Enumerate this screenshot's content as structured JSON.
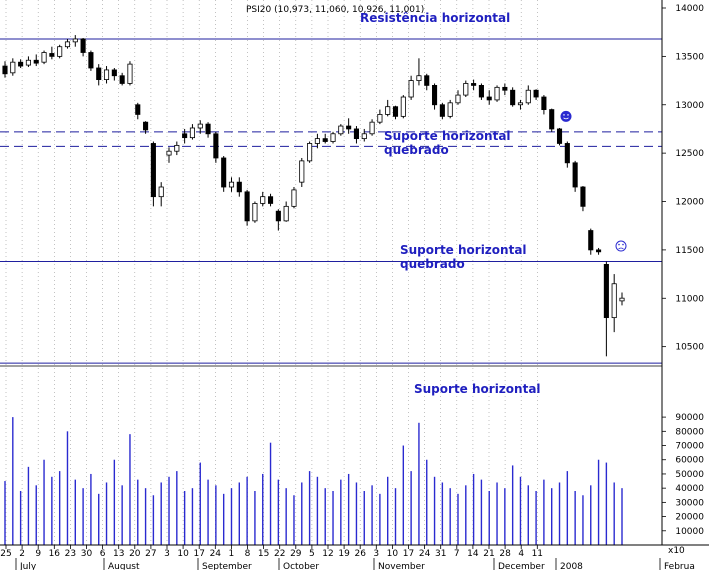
{
  "chart_data": [
    {
      "type": "candlestick",
      "title": "PSI20 (10,973, 11,060, 10,926, 11,001)",
      "price_range": [
        10300,
        14000
      ],
      "y_ticks": [
        10500,
        11000,
        11500,
        12000,
        12500,
        13000,
        13500,
        14000
      ],
      "grid": "vertical dotted",
      "horizontal_levels": [
        {
          "name": "resistance",
          "value": 13680,
          "style": "solid",
          "label": "Resistência horizontal"
        },
        {
          "name": "broken-support-1",
          "value": 12720,
          "style": "dashed",
          "label": ""
        },
        {
          "name": "broken-support-2",
          "value": 12570,
          "style": "dashed",
          "label": "Suporte horizontal\nquebrado"
        },
        {
          "name": "broken-support-3",
          "value": 11380,
          "style": "solid",
          "label": "Suporte horizontal\nquebrado"
        },
        {
          "name": "support",
          "value": 10330,
          "style": "solid",
          "label": "Suporte horizontal"
        }
      ],
      "x_tick_labels": [
        "25",
        "2",
        "9",
        "16",
        "23",
        "30",
        "6",
        "13",
        "20",
        "27",
        "3",
        "10",
        "17",
        "24",
        "1",
        "8",
        "15",
        "22",
        "29",
        "5",
        "12",
        "19",
        "26",
        "3",
        "10",
        "17",
        "24",
        "31",
        "7",
        "14",
        "21",
        "28",
        "4",
        "11"
      ],
      "month_labels": [
        "July",
        "August",
        "September",
        "October",
        "November",
        "December",
        "2008",
        "Februa"
      ],
      "ohlc": [
        [
          13400,
          13450,
          13280,
          13320
        ],
        [
          13330,
          13480,
          13300,
          13440
        ],
        [
          13440,
          13470,
          13380,
          13400
        ],
        [
          13410,
          13500,
          13390,
          13460
        ],
        [
          13460,
          13520,
          13400,
          13430
        ],
        [
          13440,
          13560,
          13420,
          13540
        ],
        [
          13530,
          13600,
          13470,
          13500
        ],
        [
          13500,
          13620,
          13480,
          13600
        ],
        [
          13600,
          13680,
          13580,
          13650
        ],
        [
          13650,
          13720,
          13600,
          13680
        ],
        [
          13680,
          13690,
          13500,
          13540
        ],
        [
          13540,
          13560,
          13350,
          13380
        ],
        [
          13380,
          13420,
          13200,
          13260
        ],
        [
          13260,
          13400,
          13220,
          13360
        ],
        [
          13360,
          13380,
          13250,
          13300
        ],
        [
          13300,
          13330,
          13200,
          13220
        ],
        [
          13220,
          13450,
          13200,
          13420
        ],
        [
          13000,
          13020,
          12850,
          12900
        ],
        [
          12820,
          12830,
          12700,
          12740
        ],
        [
          12600,
          12620,
          11950,
          12050
        ],
        [
          12050,
          12200,
          11950,
          12150
        ],
        [
          12480,
          12560,
          12400,
          12520
        ],
        [
          12520,
          12620,
          12480,
          12580
        ],
        [
          12700,
          12750,
          12600,
          12660
        ],
        [
          12660,
          12800,
          12640,
          12760
        ],
        [
          12760,
          12840,
          12700,
          12800
        ],
        [
          12800,
          12820,
          12660,
          12700
        ],
        [
          12700,
          12720,
          12400,
          12450
        ],
        [
          12450,
          12470,
          12100,
          12150
        ],
        [
          12150,
          12250,
          12100,
          12200
        ],
        [
          12200,
          12250,
          12050,
          12100
        ],
        [
          12100,
          12120,
          11750,
          11800
        ],
        [
          11800,
          12000,
          11780,
          11980
        ],
        [
          11980,
          12100,
          11950,
          12050
        ],
        [
          12050,
          12080,
          11950,
          11980
        ],
        [
          11900,
          11920,
          11700,
          11800
        ],
        [
          11800,
          12000,
          11790,
          11950
        ],
        [
          11950,
          12150,
          11930,
          12120
        ],
        [
          12200,
          12450,
          12150,
          12420
        ],
        [
          12420,
          12620,
          12400,
          12600
        ],
        [
          12600,
          12700,
          12550,
          12650
        ],
        [
          12650,
          12700,
          12600,
          12620
        ],
        [
          12620,
          12720,
          12600,
          12700
        ],
        [
          12700,
          12800,
          12680,
          12780
        ],
        [
          12780,
          12860,
          12700,
          12750
        ],
        [
          12750,
          12780,
          12600,
          12650
        ],
        [
          12650,
          12750,
          12620,
          12700
        ],
        [
          12700,
          12850,
          12680,
          12820
        ],
        [
          12820,
          12950,
          12800,
          12900
        ],
        [
          12900,
          13050,
          12880,
          12980
        ],
        [
          12980,
          12990,
          12850,
          12880
        ],
        [
          12880,
          13100,
          12860,
          13080
        ],
        [
          13080,
          13300,
          13050,
          13250
        ],
        [
          13250,
          13480,
          13200,
          13300
        ],
        [
          13300,
          13320,
          13150,
          13200
        ],
        [
          13200,
          13220,
          12950,
          13000
        ],
        [
          13000,
          13020,
          12850,
          12880
        ],
        [
          12880,
          13050,
          12860,
          13020
        ],
        [
          13020,
          13150,
          13000,
          13100
        ],
        [
          13100,
          13250,
          13080,
          13220
        ],
        [
          13220,
          13260,
          13150,
          13200
        ],
        [
          13200,
          13220,
          13050,
          13080
        ],
        [
          13080,
          13150,
          13000,
          13050
        ],
        [
          13050,
          13200,
          13030,
          13180
        ],
        [
          13180,
          13220,
          13100,
          13150
        ],
        [
          13150,
          13180,
          12980,
          13000
        ],
        [
          13000,
          13050,
          12950,
          13020
        ],
        [
          13020,
          13200,
          13000,
          13150
        ],
        [
          13150,
          13160,
          13050,
          13080
        ],
        [
          13080,
          13100,
          12900,
          12950
        ],
        [
          12950,
          12960,
          12720,
          12750
        ],
        [
          12750,
          12760,
          12580,
          12600
        ],
        [
          12600,
          12620,
          12350,
          12400
        ],
        [
          12400,
          12420,
          12100,
          12150
        ],
        [
          12150,
          12160,
          11900,
          11950
        ],
        [
          11700,
          11720,
          11450,
          11500
        ],
        [
          11500,
          11520,
          11450,
          11480
        ],
        [
          11350,
          11380,
          10400,
          10800
        ],
        [
          10800,
          11250,
          10650,
          11150
        ],
        [
          10973,
          11060,
          10926,
          11001
        ]
      ],
      "volume_range": [
        0,
        95000
      ],
      "volume_ticks": [
        10000,
        20000,
        30000,
        40000,
        50000,
        60000,
        70000,
        80000,
        90000
      ],
      "volume": [
        45000,
        90000,
        38000,
        55000,
        42000,
        60000,
        48000,
        52000,
        80000,
        46000,
        40000,
        50000,
        36000,
        44000,
        60000,
        42000,
        78000,
        46000,
        40000,
        35000,
        44000,
        48000,
        52000,
        38000,
        40000,
        58000,
        46000,
        42000,
        36000,
        40000,
        44000,
        48000,
        38000,
        50000,
        72000,
        46000,
        40000,
        35000,
        44000,
        52000,
        48000,
        40000,
        38000,
        46000,
        50000,
        44000,
        38000,
        42000,
        36000,
        48000,
        40000,
        70000,
        52000,
        86000,
        60000,
        48000,
        44000,
        40000,
        36000,
        42000,
        50000,
        46000,
        38000,
        44000,
        40000,
        56000,
        48000,
        42000,
        38000,
        46000,
        40000,
        44000,
        52000,
        38000,
        35000,
        42000,
        60000,
        58000,
        44000,
        40000
      ],
      "face_icons": [
        {
          "name": "happy",
          "value": 12880
        },
        {
          "name": "sad",
          "value": 11540
        }
      ]
    }
  ]
}
